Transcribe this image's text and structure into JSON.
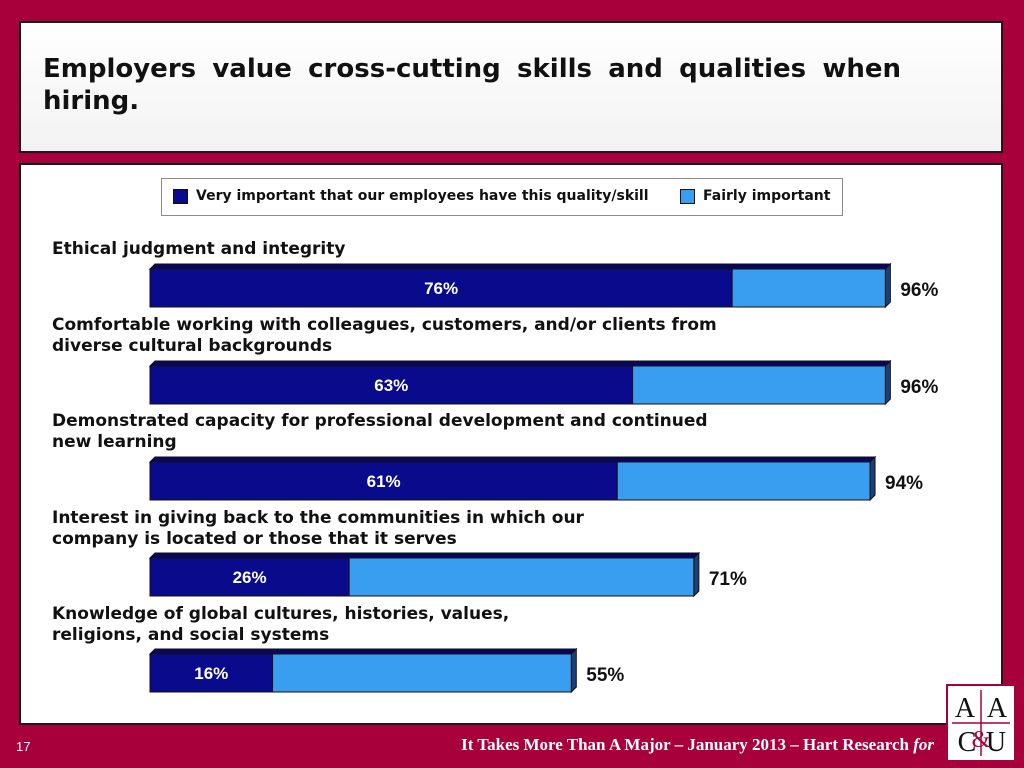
{
  "slide": {
    "title": "Employers value cross-cutting skills and qualities when hiring.",
    "page_number": "17",
    "footer_main": "It Takes More Than A Major – January 2013 – Hart Research",
    "footer_italic": "for",
    "logo_text": "AAC&U"
  },
  "colors": {
    "very_important": "#0a0a8c",
    "fairly_important": "#3a9ef0",
    "frame": "#a8003b"
  },
  "chart_data": {
    "type": "bar",
    "orientation": "horizontal",
    "stacked": true,
    "title": "",
    "xlabel": "",
    "ylabel": "",
    "xlim": [
      0,
      100
    ],
    "legend": [
      "Very important that our employees have this quality/skill",
      "Fairly important"
    ],
    "legend_placement": "top",
    "categories": [
      [
        "Ethical judgment and integrity"
      ],
      [
        "Comfortable working with colleagues, customers, and/or clients from",
        "diverse cultural backgrounds"
      ],
      [
        "Demonstrated capacity for professional development and continued",
        "new learning"
      ],
      [
        "Interest in giving back to the communities in which our",
        "company is located or those that it serves"
      ],
      [
        "Knowledge of global cultures, histories, values,",
        "religions, and social systems"
      ]
    ],
    "series": [
      {
        "name": "Very important that our employees have this quality/skill",
        "values": [
          76,
          63,
          61,
          26,
          16
        ],
        "labels": [
          "76%",
          "63%",
          "61%",
          "26%",
          "16%"
        ]
      },
      {
        "name": "Fairly important",
        "values": [
          20,
          33,
          33,
          45,
          39
        ]
      }
    ],
    "totals": [
      96,
      96,
      94,
      71,
      55
    ],
    "total_labels": [
      "96%",
      "96%",
      "94%",
      "71%",
      "55%"
    ]
  }
}
